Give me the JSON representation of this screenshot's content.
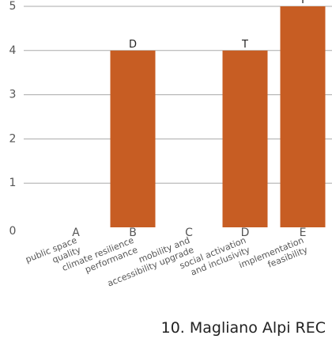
{
  "chart_data": {
    "type": "bar",
    "title": "10. Magliano Alpi REC",
    "categories": [
      "A",
      "B",
      "C",
      "D",
      "E"
    ],
    "category_descriptions": [
      "public space quality",
      "climate resilience performance",
      "mobility and accessibility upgrade",
      "social activation and inclusivity",
      "implementation feasibility"
    ],
    "values": [
      0,
      4,
      0,
      4,
      5
    ],
    "bar_labels": [
      "",
      "D",
      "",
      "T",
      "I"
    ],
    "y_ticks": [
      0,
      1,
      2,
      3,
      4,
      5
    ],
    "ylim": [
      0,
      5
    ],
    "grid": true,
    "colors": {
      "bar": "#c75d23",
      "grid": "#aaaaaa",
      "text": "#555555",
      "title": "#222222"
    }
  }
}
